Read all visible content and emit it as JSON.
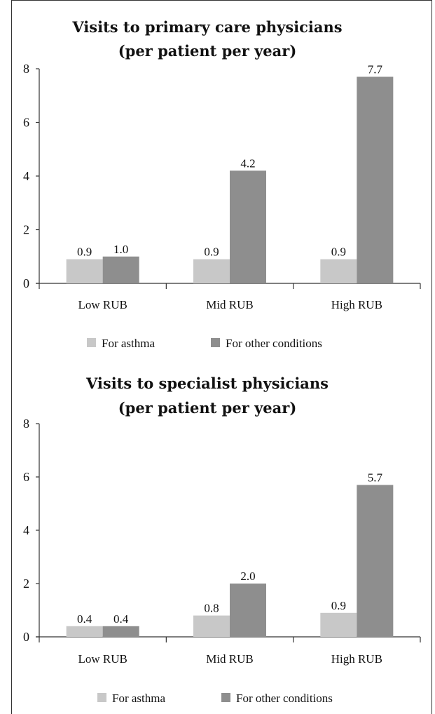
{
  "chart_data": [
    {
      "type": "bar",
      "title": "Visits to primary care physicians",
      "subtitle": "(per patient per year)",
      "categories": [
        "Low RUB",
        "Mid RUB",
        "High RUB"
      ],
      "series": [
        {
          "name": "For asthma",
          "values": [
            0.9,
            0.9,
            0.9
          ],
          "labels": [
            "0.9",
            "0.9",
            "0.9"
          ],
          "color": "#c8c8c8"
        },
        {
          "name": "For other conditions",
          "values": [
            1.0,
            4.2,
            7.7
          ],
          "labels": [
            "1.0",
            "4.2",
            "7.7"
          ],
          "color": "#8e8e8e"
        }
      ],
      "ylim": [
        0,
        8
      ],
      "yticks": [
        "0",
        "2",
        "4",
        "6",
        "8"
      ],
      "grid": false,
      "legend": "bottom"
    },
    {
      "type": "bar",
      "title": "Visits to specialist physicians",
      "subtitle": "(per patient per year)",
      "categories": [
        "Low RUB",
        "Mid RUB",
        "High RUB"
      ],
      "series": [
        {
          "name": "For asthma",
          "values": [
            0.4,
            0.8,
            0.9
          ],
          "labels": [
            "0.4",
            "0.8",
            "0.9"
          ],
          "color": "#c8c8c8"
        },
        {
          "name": "For other conditions",
          "values": [
            0.4,
            2.0,
            5.7
          ],
          "labels": [
            "0.4",
            "2.0",
            "5.7"
          ],
          "color": "#8e8e8e"
        }
      ],
      "ylim": [
        0,
        8
      ],
      "yticks": [
        "0",
        "2",
        "4",
        "6",
        "8"
      ],
      "grid": false,
      "legend": "bottom"
    }
  ]
}
